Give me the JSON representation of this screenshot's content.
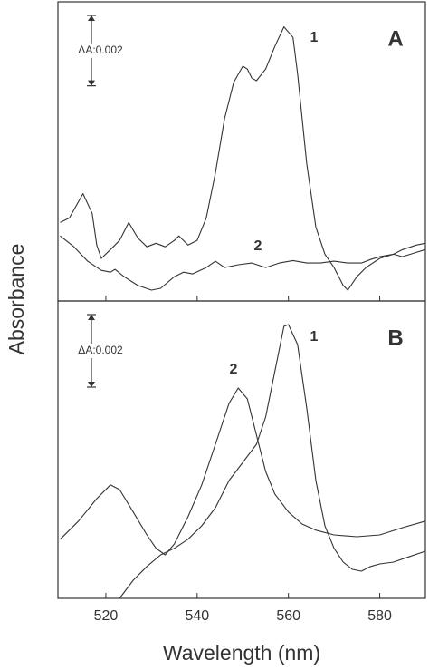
{
  "chart_data": [
    {
      "type": "line",
      "panel_label": "A",
      "ylabel": "Absorbance",
      "xlim": [
        509.5,
        590
      ],
      "ylim": [
        0,
        0.0085
      ],
      "xticks": [
        520,
        540,
        560,
        580
      ],
      "scale_bar": {
        "value": 0.002,
        "label": "ΔA:0.002"
      },
      "series": [
        {
          "name": "1",
          "color": "#333333",
          "x": [
            510,
            512,
            515,
            517,
            518,
            519,
            521,
            523,
            525,
            527,
            529,
            531,
            533,
            535,
            536,
            538,
            540,
            542,
            544,
            546,
            548,
            550,
            551,
            552,
            553,
            555,
            557,
            559,
            561,
            562,
            564,
            566,
            568,
            570,
            572,
            573,
            575,
            577,
            580,
            583,
            585,
            588,
            590
          ],
          "values": [
            0.00223,
            0.00236,
            0.00305,
            0.00249,
            0.00159,
            0.00121,
            0.00146,
            0.00172,
            0.00223,
            0.00179,
            0.00154,
            0.00164,
            0.00154,
            0.00172,
            0.00185,
            0.00159,
            0.00172,
            0.00236,
            0.00364,
            0.00518,
            0.00621,
            0.00667,
            0.00659,
            0.00633,
            0.00626,
            0.00659,
            0.00723,
            0.00779,
            0.00749,
            0.00646,
            0.0039,
            0.0021,
            0.00133,
            0.00095,
            0.00044,
            0.00031,
            0.00069,
            0.00095,
            0.00121,
            0.00133,
            0.00146,
            0.00159,
            0.00164
          ]
        },
        {
          "name": "2",
          "color": "#333333",
          "x": [
            510,
            513,
            516,
            519,
            521,
            522,
            524,
            527,
            530,
            532,
            535,
            537,
            539,
            542,
            544,
            546,
            549,
            552,
            555,
            558,
            561,
            564,
            567,
            570,
            573,
            576,
            578,
            580,
            583,
            585,
            588,
            590
          ],
          "values": [
            0.00185,
            0.00154,
            0.00113,
            0.00087,
            0.00082,
            0.0009,
            0.00069,
            0.00044,
            0.00031,
            0.00036,
            0.00069,
            0.00082,
            0.00077,
            0.00095,
            0.00113,
            0.00095,
            0.00103,
            0.00108,
            0.00095,
            0.00108,
            0.00115,
            0.00108,
            0.00108,
            0.00113,
            0.00108,
            0.00108,
            0.00118,
            0.00126,
            0.00133,
            0.00126,
            0.00138,
            0.00146
          ]
        }
      ]
    },
    {
      "type": "line",
      "panel_label": "B",
      "xlabel": "Wavelength (nm)",
      "xlim": [
        509.5,
        590
      ],
      "ylim": [
        0,
        0.0082
      ],
      "xticks": [
        520,
        540,
        560,
        580
      ],
      "scale_bar": {
        "value": 0.002,
        "label": "ΔA:0.002"
      },
      "series": [
        {
          "name": "1",
          "color": "#333333",
          "x": [
            523,
            526,
            529,
            532,
            535,
            538,
            541,
            544,
            547,
            550,
            553,
            555,
            557,
            559,
            560,
            562,
            564,
            566,
            568,
            570,
            572,
            574,
            576,
            578,
            580,
            583,
            586,
            590
          ],
          "values": [
            0,
            0.0005,
            0.00088,
            0.0012,
            0.00138,
            0.00163,
            0.002,
            0.0025,
            0.00325,
            0.00375,
            0.00425,
            0.005,
            0.00625,
            0.0075,
            0.00755,
            0.007,
            0.00525,
            0.00325,
            0.002,
            0.00138,
            0.001,
            0.0008,
            0.00075,
            0.00088,
            0.00095,
            0.001,
            0.00113,
            0.0013
          ]
        },
        {
          "name": "2",
          "color": "#333333",
          "x": [
            510,
            514,
            518,
            521,
            523,
            526,
            529,
            531,
            533,
            535,
            538,
            541,
            544,
            547,
            549,
            551,
            553,
            555,
            557,
            560,
            563,
            566,
            570,
            575,
            580,
            585,
            590
          ],
          "values": [
            0.00163,
            0.00213,
            0.00275,
            0.00313,
            0.003,
            0.00238,
            0.00175,
            0.00138,
            0.0012,
            0.0015,
            0.00225,
            0.00313,
            0.00425,
            0.00538,
            0.0058,
            0.0055,
            0.0045,
            0.0035,
            0.00288,
            0.00238,
            0.00205,
            0.00188,
            0.00175,
            0.0017,
            0.00175,
            0.00195,
            0.00213
          ]
        }
      ]
    }
  ]
}
